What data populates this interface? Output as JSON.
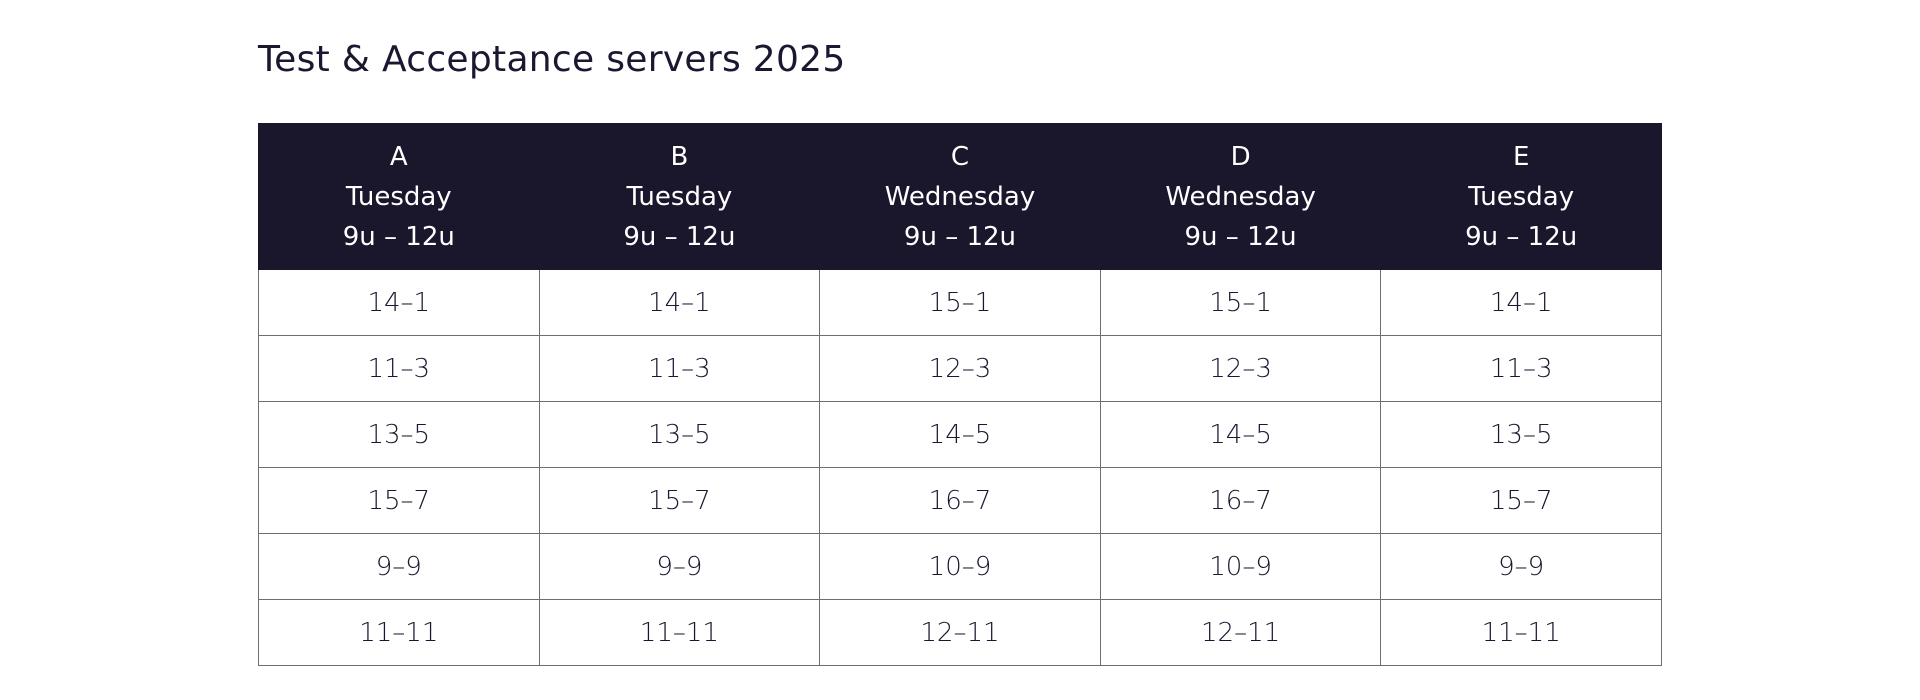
{
  "title": "Test & Acceptance servers 2025",
  "colors": {
    "header_bg": "#1a162b",
    "header_text": "#ffffff",
    "title_text": "#1b1730",
    "cell_border": "#6e6e6e"
  },
  "columns": [
    {
      "group": "A",
      "day": "Tuesday",
      "time": "9u – 12u"
    },
    {
      "group": "B",
      "day": "Tuesday",
      "time": "9u – 12u"
    },
    {
      "group": "C",
      "day": "Wednesday",
      "time": "9u – 12u"
    },
    {
      "group": "D",
      "day": "Wednesday",
      "time": "9u – 12u"
    },
    {
      "group": "E",
      "day": "Tuesday",
      "time": "9u – 12u"
    }
  ],
  "rows": [
    [
      "14–1",
      "14–1",
      "15–1",
      "15–1",
      "14–1"
    ],
    [
      "11–3",
      "11–3",
      "12–3",
      "12–3",
      "11–3"
    ],
    [
      "13–5",
      "13–5",
      "14–5",
      "14–5",
      "13–5"
    ],
    [
      "15–7",
      "15–7",
      "16–7",
      "16–7",
      "15–7"
    ],
    [
      "9–9",
      "9–9",
      "10–9",
      "10–9",
      "9–9"
    ],
    [
      "11–11",
      "11–11",
      "12–11",
      "12–11",
      "11–11"
    ]
  ]
}
